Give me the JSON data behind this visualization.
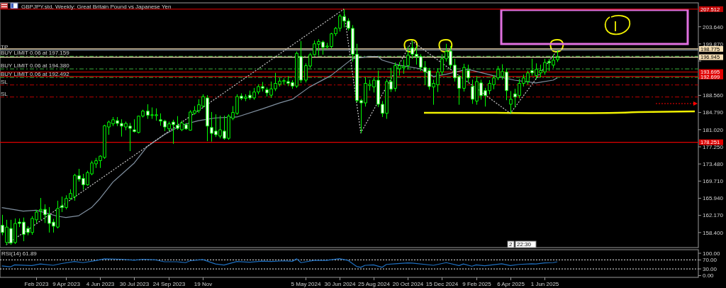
{
  "chart_data": [
    {
      "type": "candlestick",
      "title": "GBPJPY.std, Weekly:  Great Britain Pound vs Japanese Yen",
      "xlim": [
        "2022-12-22",
        "2026-02-08"
      ],
      "ylim": [
        155.1,
        208.9
      ],
      "tick_labels": "y",
      "yticks": [
        {
          "value": 203.64,
          "label": "203.640"
        },
        {
          "value": 199.87,
          "label": "199.870"
        },
        {
          "value": 196.1,
          "label": null
        },
        {
          "value": 192.33,
          "label": null
        },
        {
          "value": 188.56,
          "label": "188.560"
        },
        {
          "value": 184.79,
          "label": "184.790"
        },
        {
          "value": 181.02,
          "label": "181.020"
        },
        {
          "value": 177.25,
          "label": "177.250"
        },
        {
          "value": 173.48,
          "label": "173.480"
        },
        {
          "value": 169.71,
          "label": "169.710"
        },
        {
          "value": 165.94,
          "label": "165.940"
        },
        {
          "value": 162.17,
          "label": "162.170"
        },
        {
          "value": 158.4,
          "label": "158.400"
        }
      ],
      "series": [
        {
          "color": "#00ff00",
          "x": [
            "2022-12-25",
            "2023-01-01",
            "2023-01-08",
            "2023-01-15",
            "2023-01-22",
            "2023-01-29",
            "2023-02-05",
            "2023-02-12",
            "2023-02-19",
            "2023-02-26",
            "2023-03-05",
            "2023-03-12",
            "2023-03-19",
            "2023-03-26",
            "2023-04-02",
            "2023-04-09",
            "2023-04-16",
            "2023-04-23",
            "2023-04-30",
            "2023-05-07",
            "2023-05-14",
            "2023-05-21",
            "2023-05-28",
            "2023-06-04",
            "2023-06-11",
            "2023-06-18",
            "2023-06-25",
            "2023-07-02",
            "2023-07-09",
            "2023-07-16",
            "2023-07-23",
            "2023-07-30",
            "2023-08-06",
            "2023-08-13",
            "2023-08-20",
            "2023-08-27",
            "2023-09-03",
            "2023-09-10",
            "2023-09-17",
            "2023-09-24",
            "2023-10-01",
            "2023-10-08",
            "2023-10-15",
            "2023-10-22",
            "2023-10-29",
            "2023-11-05",
            "2023-11-12",
            "2023-11-19",
            "2023-11-26",
            "2023-12-03",
            "2023-12-10",
            "2023-12-17",
            "2023-12-24",
            "2023-12-31",
            "2024-01-07",
            "2024-01-14",
            "2024-01-21",
            "2024-01-28",
            "2024-02-04",
            "2024-02-11",
            "2024-02-18",
            "2024-02-25",
            "2024-03-03",
            "2024-03-10",
            "2024-03-17",
            "2024-03-24",
            "2024-03-31",
            "2024-04-07",
            "2024-04-14",
            "2024-04-21",
            "2024-04-28",
            "2024-05-05",
            "2024-05-12",
            "2024-05-19",
            "2024-05-26",
            "2024-06-02",
            "2024-06-09",
            "2024-06-16",
            "2024-06-23",
            "2024-06-30",
            "2024-07-07",
            "2024-07-14",
            "2024-07-21",
            "2024-07-28",
            "2024-08-04",
            "2024-08-11",
            "2024-08-18",
            "2024-08-25",
            "2024-09-01",
            "2024-09-08",
            "2024-09-15",
            "2024-09-22",
            "2024-09-29",
            "2024-10-06",
            "2024-10-13",
            "2024-10-20",
            "2024-10-27",
            "2024-11-03",
            "2024-11-10",
            "2024-11-17",
            "2024-11-24",
            "2024-12-01",
            "2024-12-08",
            "2024-12-15",
            "2024-12-22",
            "2024-12-29",
            "2025-01-05",
            "2025-01-12",
            "2025-01-19",
            "2025-01-26",
            "2025-02-02",
            "2025-02-09",
            "2025-02-16",
            "2025-02-23",
            "2025-03-02",
            "2025-03-09",
            "2025-03-16",
            "2025-03-23",
            "2025-03-30",
            "2025-04-06",
            "2025-04-13",
            "2025-04-20",
            "2025-04-27",
            "2025-05-04",
            "2025-05-11",
            "2025-05-18",
            "2025-05-25",
            "2025-06-01",
            "2025-06-08",
            "2025-06-15",
            "2025-06-22"
          ],
          "ohlc": [
            [
              160.0,
              162.3,
              157.8,
              158.4
            ],
            [
              156.2,
              161.2,
              155.7,
              159.6
            ],
            [
              159.3,
              161.2,
              155.7,
              156.1
            ],
            [
              156.2,
              161.5,
              155.9,
              160.4
            ],
            [
              160.7,
              161.5,
              159.6,
              160.4
            ],
            [
              160.7,
              161.7,
              156.5,
              158.0
            ],
            [
              159.3,
              159.8,
              157.8,
              158.4
            ],
            [
              158.4,
              162.0,
              157.9,
              161.5
            ],
            [
              161.2,
              163.4,
              160.5,
              162.9
            ],
            [
              163.2,
              166.0,
              161.2,
              163.5
            ],
            [
              163.5,
              164.6,
              160.5,
              162.3
            ],
            [
              162.3,
              164.0,
              158.4,
              160.4
            ],
            [
              160.7,
              161.4,
              158.4,
              159.8
            ],
            [
              159.6,
              165.4,
              159.3,
              163.7
            ],
            [
              164.3,
              166.3,
              162.9,
              163.9
            ],
            [
              163.9,
              166.6,
              163.5,
              165.9
            ],
            [
              165.9,
              167.9,
              165.6,
              167.0
            ],
            [
              166.3,
              171.3,
              165.4,
              171.0
            ],
            [
              170.9,
              172.4,
              169.6,
              170.1
            ],
            [
              170.3,
              171.3,
              167.8,
              168.9
            ],
            [
              168.9,
              172.0,
              168.7,
              171.6
            ],
            [
              171.3,
              174.2,
              171.0,
              173.7
            ],
            [
              173.5,
              174.8,
              172.6,
              174.2
            ],
            [
              174.2,
              175.4,
              172.6,
              175.2
            ],
            [
              174.9,
              182.1,
              174.6,
              181.9
            ],
            [
              181.6,
              183.0,
              179.9,
              182.7
            ],
            [
              182.3,
              183.8,
              181.8,
              183.2
            ],
            [
              183.0,
              183.8,
              181.8,
              182.4
            ],
            [
              182.4,
              183.3,
              179.5,
              181.8
            ],
            [
              181.6,
              182.8,
              180.9,
              182.4
            ],
            [
              181.8,
              182.5,
              176.3,
              181.3
            ],
            [
              181.0,
              183.3,
              180.4,
              180.6
            ],
            [
              180.4,
              184.1,
              180.2,
              184.0
            ],
            [
              184.0,
              185.4,
              183.7,
              185.1
            ],
            [
              185.1,
              186.6,
              183.4,
              184.2
            ],
            [
              184.2,
              185.9,
              183.4,
              184.3
            ],
            [
              184.1,
              185.7,
              183.0,
              184.3
            ],
            [
              183.2,
              184.6,
              181.9,
              182.9
            ],
            [
              182.9,
              183.2,
              180.7,
              181.6
            ],
            [
              181.2,
              182.8,
              180.7,
              182.3
            ],
            [
              182.7,
              183.2,
              177.9,
              182.1
            ],
            [
              182.0,
              184.0,
              181.0,
              181.3
            ],
            [
              181.0,
              183.0,
              180.7,
              182.5
            ],
            [
              182.1,
              182.5,
              181.0,
              181.2
            ],
            [
              180.9,
              185.3,
              180.8,
              184.9
            ],
            [
              184.6,
              186.2,
              184.3,
              185.2
            ],
            [
              185.2,
              187.7,
              184.7,
              186.5
            ],
            [
              186.2,
              188.8,
              185.8,
              188.3
            ],
            [
              188.0,
              188.6,
              178.5,
              181.8
            ],
            [
              181.5,
              184.9,
              178.4,
              180.2
            ],
            [
              180.7,
              184.4,
              179.4,
              179.9
            ],
            [
              179.6,
              184.1,
              179.1,
              181.0
            ],
            [
              180.7,
              184.1,
              178.8,
              179.1
            ],
            [
              179.1,
              184.4,
              178.8,
              184.0
            ],
            [
              183.5,
              186.2,
              183.1,
              184.8
            ],
            [
              184.6,
              188.8,
              184.3,
              188.3
            ],
            [
              188.4,
              189.0,
              187.5,
              187.9
            ],
            [
              187.9,
              188.8,
              187.3,
              188.2
            ],
            [
              188.6,
              189.6,
              187.6,
              188.0
            ],
            [
              188.0,
              190.2,
              187.6,
              189.3
            ],
            [
              189.3,
              191.0,
              188.8,
              190.5
            ],
            [
              190.5,
              191.5,
              189.4,
              190.1
            ],
            [
              189.8,
              190.3,
              188.3,
              189.1
            ],
            [
              188.6,
              191.6,
              188.0,
              190.0
            ],
            [
              190.0,
              193.5,
              189.5,
              191.2
            ],
            [
              191.0,
              192.4,
              190.5,
              191.7
            ],
            [
              191.6,
              192.3,
              190.9,
              191.8
            ],
            [
              191.6,
              192.8,
              190.6,
              191.2
            ],
            [
              191.4,
              191.9,
              190.0,
              190.6
            ],
            [
              190.6,
              198.2,
              190.2,
              197.8
            ],
            [
              197.1,
              200.5,
              191.3,
              191.9
            ],
            [
              191.9,
              195.6,
              191.4,
              195.1
            ],
            [
              195.0,
              197.9,
              194.6,
              197.5
            ],
            [
              197.5,
              200.6,
              197.3,
              199.9
            ],
            [
              199.8,
              200.9,
              197.3,
              200.4
            ],
            [
              200.3,
              200.6,
              197.5,
              199.1
            ],
            [
              199.2,
              200.1,
              198.7,
              199.4
            ],
            [
              199.3,
              202.3,
              198.9,
              202.1
            ],
            [
              202.1,
              203.6,
              201.6,
              203.3
            ],
            [
              203.3,
              206.4,
              202.6,
              206.0
            ],
            [
              205.9,
              207.5,
              203.5,
              204.9
            ],
            [
              204.9,
              205.5,
              202.8,
              203.3
            ],
            [
              203.3,
              204.0,
              196.0,
              197.6
            ],
            [
              197.6,
              199.9,
              187.0,
              187.4
            ],
            [
              187.4,
              187.8,
              180.3,
              186.9
            ],
            [
              186.9,
              192.6,
              186.1,
              191.2
            ],
            [
              190.7,
              192.0,
              189.6,
              191.0
            ],
            [
              190.4,
              192.5,
              189.2,
              191.9
            ],
            [
              191.9,
              194.0,
              186.0,
              186.6
            ],
            [
              186.6,
              187.3,
              183.8,
              184.6
            ],
            [
              184.6,
              192.1,
              183.4,
              191.6
            ],
            [
              191.6,
              194.6,
              189.3,
              189.9
            ],
            [
              190.1,
              195.8,
              189.4,
              195.1
            ],
            [
              194.4,
              195.9,
              192.9,
              195.1
            ],
            [
              194.6,
              196.4,
              193.3,
              194.9
            ],
            [
              195.1,
              199.3,
              194.3,
              197.4
            ],
            [
              199.0,
              200.5,
              196.6,
              197.6
            ],
            [
              197.6,
              199.5,
              195.3,
              197.1
            ],
            [
              197.1,
              197.6,
              193.9,
              194.7
            ],
            [
              194.7,
              196.1,
              190.8,
              193.7
            ],
            [
              194.0,
              194.6,
              189.8,
              190.5
            ],
            [
              190.4,
              192.0,
              186.5,
              191.2
            ],
            [
              190.9,
              194.5,
              189.3,
              193.7
            ],
            [
              193.7,
              197.6,
              193.0,
              196.6
            ],
            [
              196.6,
              199.9,
              196.0,
              198.2
            ],
            [
              198.3,
              199.4,
              194.5,
              195.2
            ],
            [
              195.2,
              196.6,
              191.6,
              192.4
            ],
            [
              192.7,
              193.0,
              186.5,
              190.1
            ],
            [
              190.1,
              195.5,
              189.4,
              194.7
            ],
            [
              194.0,
              195.3,
              191.4,
              192.4
            ],
            [
              190.5,
              192.0,
              186.7,
              187.7
            ],
            [
              187.3,
              192.8,
              186.5,
              191.6
            ],
            [
              191.3,
              192.0,
              187.6,
              188.5
            ],
            [
              189.6,
              190.2,
              186.1,
              188.5
            ],
            [
              189.6,
              191.9,
              188.8,
              191.2
            ],
            [
              190.9,
              193.0,
              189.9,
              192.4
            ],
            [
              192.4,
              195.0,
              191.9,
              194.3
            ],
            [
              192.7,
              195.4,
              192.0,
              193.8
            ],
            [
              193.7,
              194.5,
              187.5,
              189.6
            ],
            [
              186.6,
              189.5,
              184.6,
              187.7
            ],
            [
              188.9,
              190.0,
              185.9,
              188.2
            ],
            [
              188.5,
              192.2,
              187.9,
              191.2
            ],
            [
              191.2,
              193.1,
              190.5,
              192.4
            ],
            [
              191.6,
              194.0,
              190.9,
              193.5
            ],
            [
              194.0,
              196.6,
              192.9,
              193.5
            ],
            [
              192.9,
              195.6,
              192.1,
              194.3
            ],
            [
              193.5,
              195.3,
              192.5,
              194.0
            ],
            [
              193.7,
              196.6,
              193.1,
              195.8
            ],
            [
              196.0,
              196.6,
              193.9,
              195.7
            ],
            [
              195.2,
              197.5,
              194.6,
              196.3
            ],
            [
              196.4,
              198.5,
              195.9,
              196.9
            ]
          ]
        },
        {
          "type": "line",
          "color": "#8090a0",
          "line_style": "solid",
          "x": [
            "2022-12-25",
            "2023-01-29",
            "2023-02-19",
            "2023-03-26",
            "2023-04-09",
            "2023-04-30",
            "2023-05-21",
            "2023-06-04",
            "2023-06-25",
            "2023-07-30",
            "2023-08-20",
            "2023-09-17",
            "2023-10-15",
            "2023-11-12",
            "2023-12-10",
            "2024-01-14",
            "2024-02-25",
            "2024-03-24",
            "2024-04-14",
            "2024-05-12",
            "2024-06-16",
            "2024-07-21",
            "2024-08-18",
            "2024-09-01",
            "2024-09-08",
            "2024-10-06",
            "2024-11-10",
            "2024-12-01",
            "2024-12-22",
            "2025-01-26",
            "2025-03-09",
            "2025-04-13",
            "2025-05-18",
            "2025-06-15",
            "2025-06-22"
          ],
          "values": [
            163.9,
            163.1,
            163.3,
            162.0,
            161.7,
            162.1,
            163.9,
            165.9,
            169.5,
            173.7,
            177.3,
            179.9,
            182.0,
            183.0,
            183.6,
            183.8,
            185.6,
            186.9,
            187.7,
            190.4,
            192.9,
            196.6,
            197.1,
            197.1,
            196.3,
            195.2,
            194.4,
            192.7,
            193.2,
            194.3,
            192.9,
            191.9,
            191.3,
            191.9,
            192.4
          ]
        },
        {
          "type": "line",
          "color": "#c8c8c8",
          "line_style": "dotted",
          "x": [
            "2023-01-01",
            "2024-07-07",
            "2024-08-04",
            "2024-10-27",
            "2025-04-06",
            "2025-06-22"
          ],
          "values": [
            155.7,
            207.5,
            180.3,
            200.5,
            184.6,
            198.5
          ]
        }
      ],
      "ref_lines": [
        {
          "axis": "y",
          "value": 207.512,
          "label": "207.512",
          "color": "#c00000",
          "line_style": "solid"
        },
        {
          "axis": "y",
          "value": 198.775,
          "label": "198.775",
          "color": "#f5deb3",
          "line_style": "solid"
        },
        {
          "axis": "y",
          "value": 198.5,
          "label": "TP",
          "color": "#708090",
          "line_style": "solid"
        },
        {
          "axis": "y",
          "value": 197.159,
          "label": "BUY LIMIT 0.06 at 197.159",
          "color": "#2e8b2e",
          "line_style": "dashed"
        },
        {
          "axis": "y",
          "value": 196.945,
          "label": "196.945",
          "color": "#f5deb3",
          "line_style": "solid"
        },
        {
          "axis": "y",
          "value": 194.38,
          "label": "BUY LIMIT 0.06 at 194.380",
          "color": "#2e8b2e",
          "line_style": "dashed"
        },
        {
          "axis": "y",
          "value": 193.695,
          "label": "193.695",
          "color": "#e00000",
          "line_style": "solid"
        },
        {
          "axis": "y",
          "value": 192.699,
          "label": "192.699",
          "color": "#e00000",
          "line_style": "solid"
        },
        {
          "axis": "y",
          "value": 192.492,
          "label": "BUY LIMIT 0.06 at 192.492",
          "color": "#2e8b2e",
          "line_style": "dashed"
        },
        {
          "axis": "y",
          "value": 190.85,
          "label": "SL",
          "color": "#c00000",
          "line_style": "dashed"
        },
        {
          "axis": "y",
          "value": 188.2,
          "label": "SL",
          "color": "#c00000",
          "line_style": "dashed"
        },
        {
          "axis": "y",
          "value": 178.251,
          "label": "178.251",
          "color": "#e00000",
          "line_style": "solid"
        }
      ],
      "annotations": [
        "2",
        "22:30"
      ]
    },
    {
      "type": "line",
      "title": "RSI(14) 61.89",
      "xlim": [
        "2022-12-22",
        "2026-02-08"
      ],
      "ylim": [
        -8,
        116
      ],
      "xticks": [
        {
          "value": "2023-02-19",
          "label": "Feb 2023"
        },
        {
          "value": "2023-04-09",
          "label": "9 Apr 2023"
        },
        {
          "value": "2023-06-04",
          "label": "4 Jun 2023"
        },
        {
          "value": "2023-07-30",
          "label": "30 Jul 2023"
        },
        {
          "value": "2023-09-24",
          "label": "24 Sep 2023"
        },
        {
          "value": "2023-11-19",
          "label": "19 Nov"
        },
        {
          "value": "2024-05-05",
          "label": "5 May 2024"
        },
        {
          "value": "2024-06-30",
          "label": "30 Jun 2024"
        },
        {
          "value": "2024-08-25",
          "label": "25 Aug 2024"
        },
        {
          "value": "2024-10-20",
          "label": "20 Oct 2024"
        },
        {
          "value": "2024-12-15",
          "label": "15 Dec 2024"
        },
        {
          "value": "2025-02-09",
          "label": "9 Feb 2025"
        },
        {
          "value": "2025-04-06",
          "label": "6 Apr 2025"
        },
        {
          "value": "2025-06-01",
          "label": "1 Jun 2025"
        }
      ],
      "yticks": [
        {
          "value": 100,
          "label": "100.00"
        },
        {
          "value": 70,
          "label": "70.00"
        },
        {
          "value": 30,
          "label": "30.00"
        },
        {
          "value": 0,
          "label": "0.00"
        }
      ],
      "series": [
        {
          "color": "#1e6fc0",
          "x": [
            "2022-12-25",
            "2023-01-08",
            "2023-01-15",
            "2023-02-12",
            "2023-02-26",
            "2023-03-19",
            "2023-04-02",
            "2023-04-23",
            "2023-05-07",
            "2023-05-28",
            "2023-06-11",
            "2023-07-09",
            "2023-07-30",
            "2023-08-13",
            "2023-09-03",
            "2023-09-17",
            "2023-10-08",
            "2023-10-22",
            "2023-10-29",
            "2023-11-19",
            "2023-12-10",
            "2023-12-24",
            "2024-01-14",
            "2024-02-04",
            "2024-02-25",
            "2024-03-10",
            "2024-03-31",
            "2024-04-14",
            "2024-04-21",
            "2024-04-28",
            "2024-05-19",
            "2024-06-09",
            "2024-06-30",
            "2024-07-14",
            "2024-07-28",
            "2024-08-04",
            "2024-08-11",
            "2024-08-25",
            "2024-09-08",
            "2024-09-15",
            "2024-09-29",
            "2024-10-20",
            "2024-10-27",
            "2024-12-01",
            "2024-12-22",
            "2025-01-12",
            "2025-01-19",
            "2025-02-02",
            "2025-02-09",
            "2025-02-23",
            "2025-03-23",
            "2025-04-06",
            "2025-04-20",
            "2025-05-11",
            "2025-05-18",
            "2025-06-01",
            "2025-06-15",
            "2025-06-22"
          ],
          "values": [
            43,
            39,
            48,
            45,
            52,
            46,
            54,
            63,
            58,
            67,
            75,
            73,
            69,
            73,
            70,
            62,
            62,
            58,
            66,
            72,
            52,
            47,
            63,
            60,
            65,
            63,
            66,
            64,
            75,
            58,
            68,
            68,
            76,
            68,
            41,
            37,
            46,
            48,
            37,
            50,
            53,
            57,
            56,
            46,
            58,
            45,
            52,
            42,
            48,
            44,
            53,
            45,
            50,
            53,
            52,
            57,
            58,
            61.89
          ]
        }
      ],
      "ref_lines": [
        {
          "axis": "y",
          "value": 70,
          "color": "#c0c0c0",
          "line_style": "dotted"
        },
        {
          "axis": "y",
          "value": 30,
          "color": "#c0c0c0",
          "line_style": "dotted"
        }
      ]
    }
  ]
}
